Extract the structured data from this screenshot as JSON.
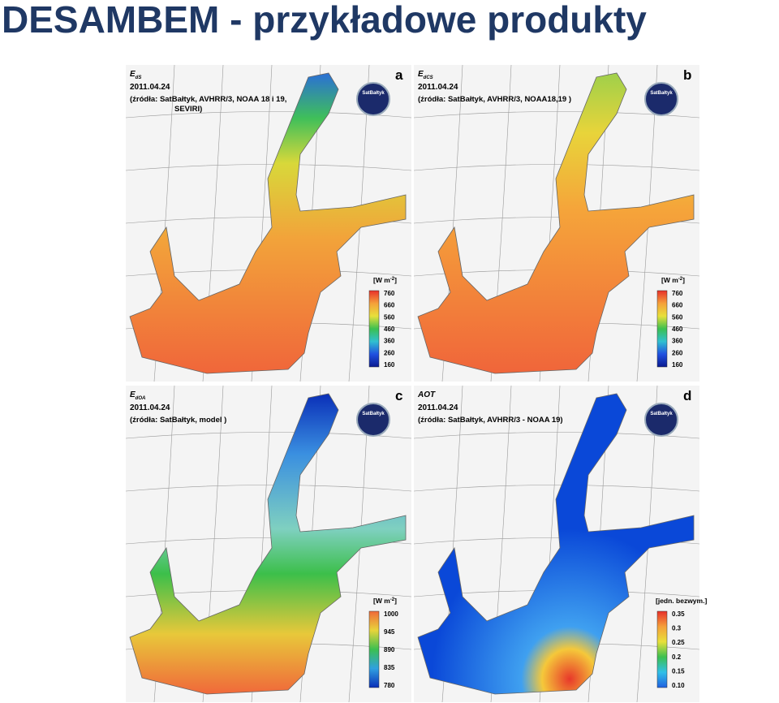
{
  "title": "DESAMBEM - przykładowe produkty",
  "panels": [
    {
      "letter": "a",
      "symbol": "E",
      "subscript": "dS",
      "date": "2011.04.24",
      "source": [
        "(źródła: SatBałtyk, AVHRR/3, NOAA 18 i 19,",
        "SEVIRI)"
      ],
      "logo": "SatBałtyk",
      "legend": {
        "unit": "[W m",
        "unit_sup": "-2",
        "unit_end": "]",
        "ticks": [
          "760",
          "660",
          "560",
          "460",
          "360",
          "260",
          "160"
        ]
      }
    },
    {
      "letter": "b",
      "symbol": "E",
      "subscript": "dCS",
      "date": "2011.04.24",
      "source": [
        "(źródła: SatBałtyk, AVHRR/3, NOAA18,19 )"
      ],
      "logo": "SatBałtyk",
      "legend": {
        "unit": "[W m",
        "unit_sup": "-2",
        "unit_end": "]",
        "ticks": [
          "760",
          "660",
          "560",
          "460",
          "360",
          "260",
          "160"
        ]
      }
    },
    {
      "letter": "c",
      "symbol": "E",
      "subscript": "dOA",
      "date": "2011.04.24",
      "source": [
        "(źródła: SatBałtyk, model )"
      ],
      "logo": "SatBałtyk",
      "legend": {
        "unit": "[W m",
        "unit_sup": "-2",
        "unit_end": "]",
        "ticks": [
          "1000",
          "945",
          "890",
          "835",
          "780"
        ]
      }
    },
    {
      "letter": "d",
      "symbol": "AOT",
      "date": "2011.04.24",
      "source": [
        "(źródła: SatBałtyk, AVHRR/3 - NOAA 19)"
      ],
      "logo": "SatBałtyk",
      "legend": {
        "unit": "[jedn. bezwym.]",
        "ticks": [
          "0.35",
          "0.3",
          "0.25",
          "0.2",
          "0.15",
          "0.10"
        ]
      }
    }
  ]
}
